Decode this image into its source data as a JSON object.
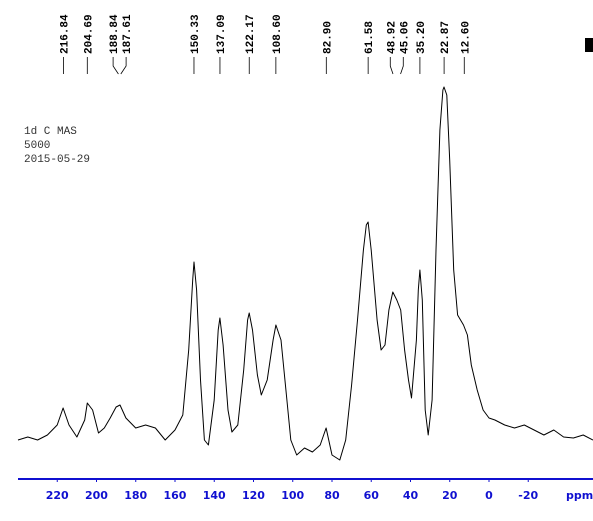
{
  "chart_data": {
    "type": "line",
    "title_lines": [
      "1d C MAS",
      "5000",
      "2015-05-29"
    ],
    "xlabel": "ppm",
    "xlim": [
      240,
      -53
    ],
    "ylim": [
      -30,
      360
    ],
    "xticks": [
      220,
      200,
      180,
      160,
      140,
      120,
      100,
      80,
      60,
      40,
      20,
      0,
      -20
    ],
    "peaks": [
      216.84,
      204.69,
      188.84,
      187.61,
      150.33,
      137.09,
      122.17,
      {
        "value": 108.6,
        "label": "108.60"
      },
      {
        "value": 82.9,
        "label": "82.90"
      },
      61.58,
      48.92,
      45.06,
      {
        "value": 35.2,
        "label": "35.20"
      },
      22.87,
      {
        "value": 12.6,
        "label": "12.60"
      }
    ],
    "series": [
      {
        "color": "#000000",
        "x": [
          240,
          235,
          230,
          225,
          220,
          217,
          214,
          210,
          206,
          204.7,
          202,
          199,
          196,
          193,
          190,
          188,
          185,
          180,
          175,
          170,
          165,
          160,
          156,
          153,
          151,
          150.3,
          149,
          147,
          145,
          143,
          140,
          138,
          137.1,
          135.5,
          133,
          131,
          128,
          125,
          123,
          122.2,
          120.5,
          118,
          116,
          113,
          110,
          108.6,
          106,
          103,
          101,
          98,
          94,
          90,
          86,
          83,
          80,
          76,
          73,
          70,
          67,
          64,
          62.5,
          61.6,
          60,
          57,
          55,
          53,
          51,
          49,
          47,
          45,
          43,
          41,
          39.5,
          37,
          36,
          35.2,
          34,
          32.5,
          31,
          29,
          27,
          25,
          23.5,
          22.9,
          21.5,
          20,
          18,
          16,
          13,
          11,
          9,
          6,
          3,
          0,
          -3,
          -8,
          -13,
          -18,
          -23,
          -28,
          -33,
          -38,
          -43,
          -48,
          -53
        ],
        "values": [
          0,
          3,
          0,
          5,
          15,
          32,
          15,
          3,
          20,
          37,
          30,
          7,
          12,
          22,
          33,
          35,
          22,
          12,
          15,
          12,
          0,
          10,
          25,
          90,
          160,
          178,
          150,
          60,
          0,
          -5,
          40,
          110,
          122,
          95,
          30,
          8,
          15,
          70,
          120,
          127,
          110,
          65,
          45,
          60,
          100,
          115,
          100,
          40,
          0,
          -15,
          -8,
          -12,
          -5,
          12,
          -15,
          -20,
          0,
          55,
          120,
          190,
          215,
          218,
          190,
          120,
          90,
          95,
          130,
          148,
          140,
          130,
          90,
          60,
          42,
          100,
          150,
          170,
          140,
          30,
          5,
          40,
          190,
          310,
          350,
          353,
          345,
          280,
          170,
          125,
          115,
          105,
          75,
          50,
          30,
          22,
          20,
          15,
          12,
          15,
          10,
          5,
          10,
          3,
          2,
          5,
          0
        ]
      }
    ]
  }
}
